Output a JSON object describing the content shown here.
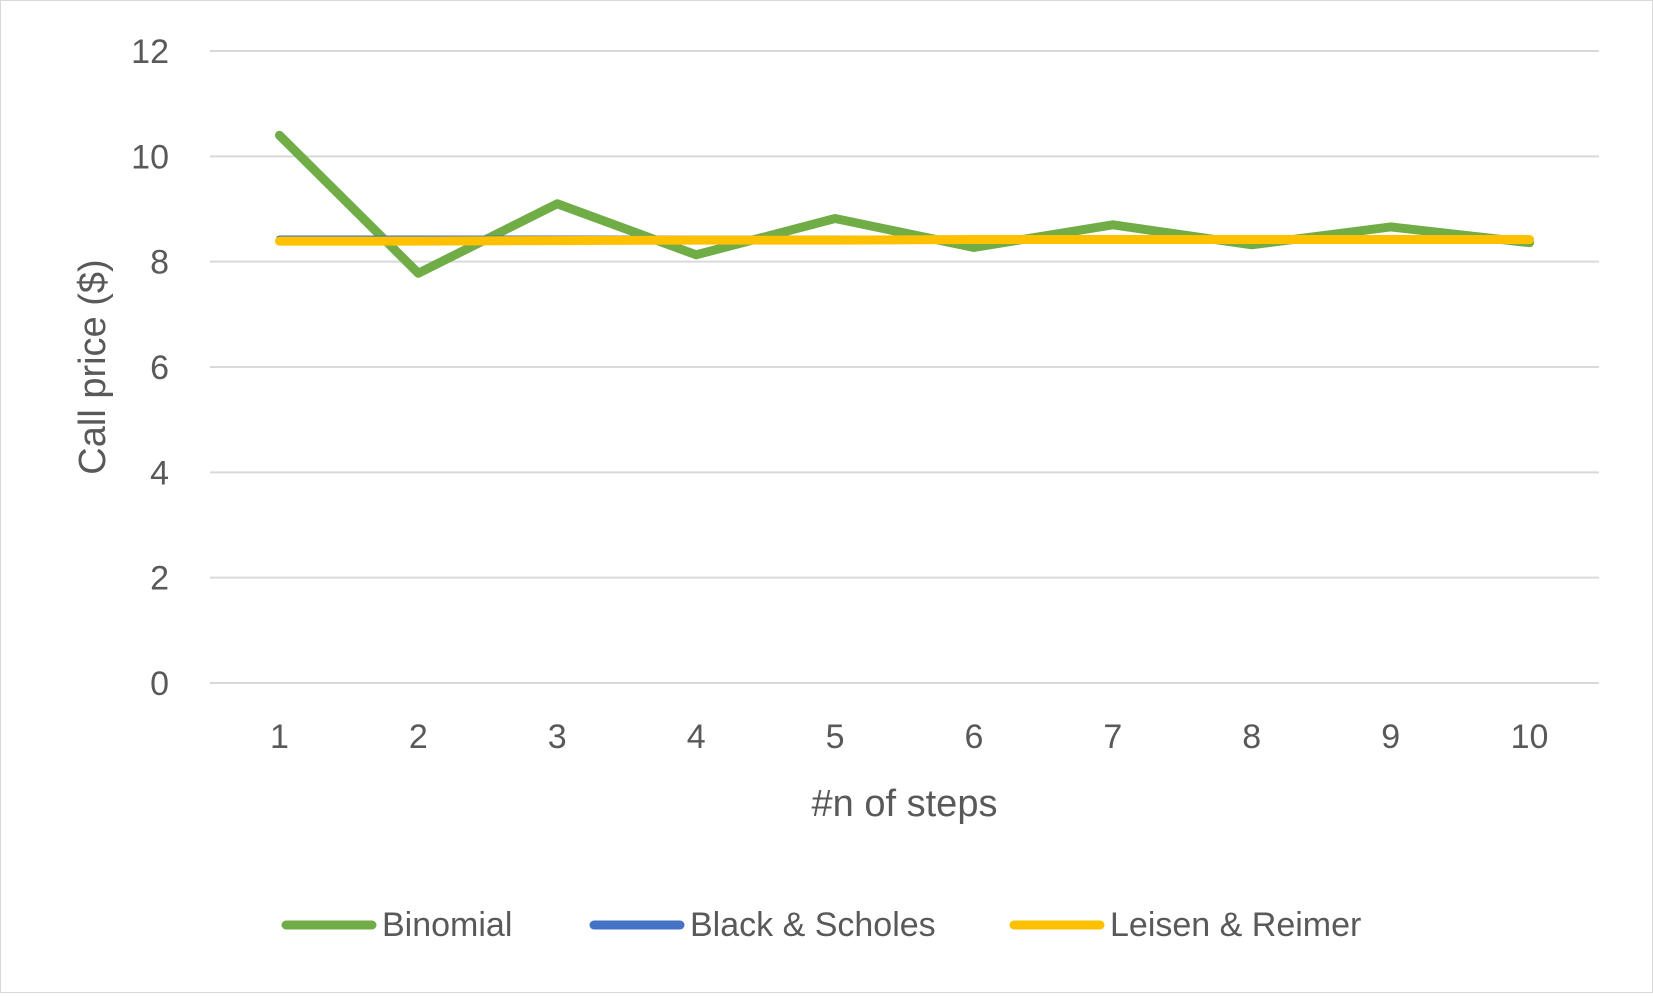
{
  "chart_data": {
    "type": "line",
    "title": "",
    "xlabel": "#n of steps",
    "ylabel": "Call price ($)",
    "categories": [
      "1",
      "2",
      "3",
      "4",
      "5",
      "6",
      "7",
      "8",
      "9",
      "10"
    ],
    "ylim": [
      0,
      12
    ],
    "yticks": [
      "0",
      "2",
      "4",
      "6",
      "8",
      "10",
      "12"
    ],
    "grid": true,
    "legend_position": "bottom",
    "series": [
      {
        "name": "Binomial",
        "color": "#70ad47",
        "values": [
          10.4,
          7.78,
          9.1,
          8.13,
          8.82,
          8.27,
          8.7,
          8.32,
          8.66,
          8.36
        ]
      },
      {
        "name": "Black & Scholes",
        "color": "#4472c4",
        "values": [
          8.43,
          8.43,
          8.43,
          8.43,
          8.43,
          8.43,
          8.43,
          8.43,
          8.43,
          8.43
        ]
      },
      {
        "name": "Leisen & Reimer",
        "color": "#ffc000",
        "values": [
          8.39,
          8.39,
          8.4,
          8.41,
          8.41,
          8.42,
          8.42,
          8.42,
          8.42,
          8.42
        ]
      }
    ]
  }
}
